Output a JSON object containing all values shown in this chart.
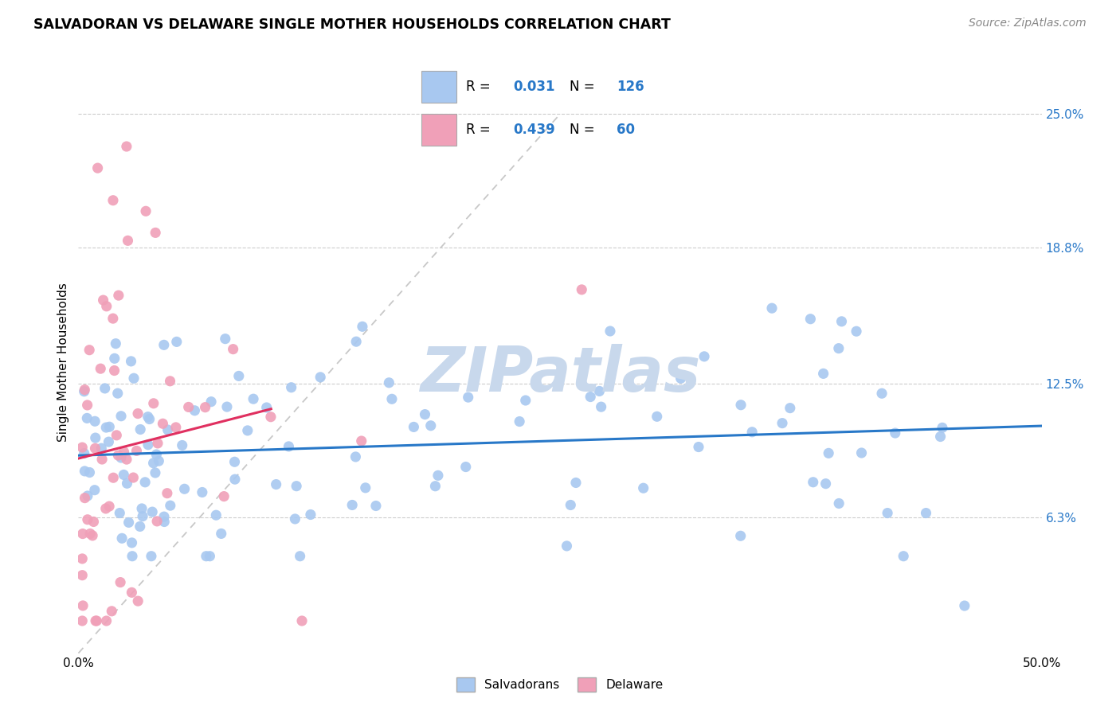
{
  "title": "SALVADORAN VS DELAWARE SINGLE MOTHER HOUSEHOLDS CORRELATION CHART",
  "source": "Source: ZipAtlas.com",
  "ylabel": "Single Mother Households",
  "yticks": [
    6.3,
    12.5,
    18.8,
    25.0
  ],
  "xlim": [
    0.0,
    50.0
  ],
  "ylim": [
    0.0,
    27.0
  ],
  "blue_R": 0.031,
  "blue_N": 126,
  "pink_R": 0.439,
  "pink_N": 60,
  "blue_color": "#a8c8f0",
  "pink_color": "#f0a0b8",
  "blue_line_color": "#2878c8",
  "pink_line_color": "#e03060",
  "diag_line_color": "#c8c8c8",
  "watermark": "ZIPatlas",
  "watermark_color": "#c8d8ec",
  "legend_label_blue": "Salvadorans",
  "legend_label_pink": "Delaware"
}
